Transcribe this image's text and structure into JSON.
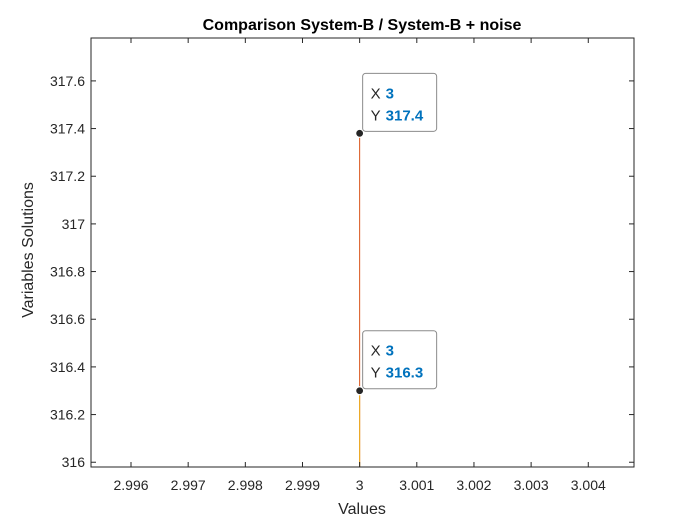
{
  "chart_data": {
    "type": "line",
    "title": "Comparison System-B / System-B + noise",
    "xlabel": "Values",
    "ylabel": "Variables Solutions",
    "xlim": [
      2.9953,
      3.0048
    ],
    "ylim": [
      315.98,
      317.78
    ],
    "xticks": [
      2.996,
      2.997,
      2.998,
      2.999,
      3,
      3.001,
      3.002,
      3.003,
      3.004
    ],
    "xtick_labels": [
      "2.996",
      "2.997",
      "2.998",
      "2.999",
      "3",
      "3.001",
      "3.002",
      "3.003",
      "3.004"
    ],
    "yticks": [
      316,
      316.2,
      316.4,
      316.6,
      316.8,
      317,
      317.2,
      317.4,
      317.6
    ],
    "ytick_labels": [
      "316",
      "316.2",
      "316.4",
      "316.6",
      "316.8",
      "317",
      "317.2",
      "317.4",
      "317.6"
    ],
    "grid": false,
    "series": [
      {
        "color": "#D95319",
        "x": [
          3,
          3
        ],
        "y": [
          315.98,
          317.38
        ]
      },
      {
        "color": "#EDB120",
        "x": [
          3,
          3
        ],
        "y": [
          315.98,
          316.3
        ]
      }
    ],
    "datatips": [
      {
        "x": 3,
        "y": 317.38,
        "x_label": "X",
        "y_label": "Y",
        "x_text": "3",
        "y_text": "317.4"
      },
      {
        "x": 3,
        "y": 316.3,
        "x_label": "X",
        "y_label": "Y",
        "x_text": "3",
        "y_text": "316.3"
      }
    ],
    "datatip_value_color": "#0072BD"
  }
}
